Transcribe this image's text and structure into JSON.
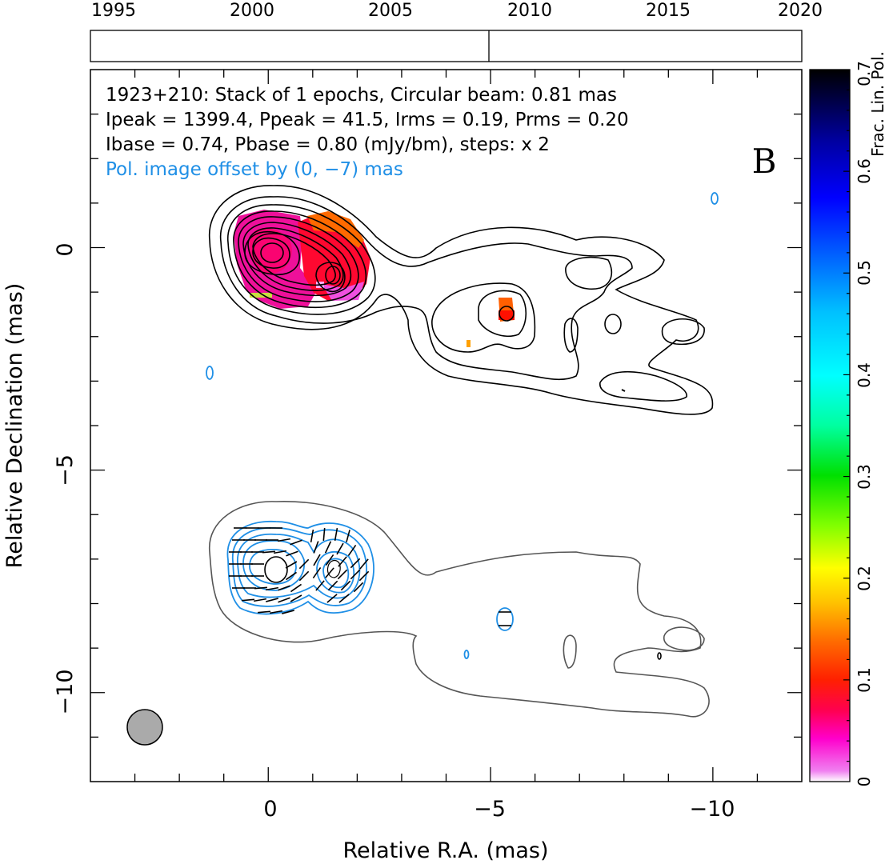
{
  "timeline": {
    "ticks": [
      "1995",
      "2000",
      "2005",
      "2010",
      "2015",
      "2020"
    ],
    "epoch_marker_year": 2008.5
  },
  "annotation": {
    "line1": "1923+210: Stack of 1 epochs, Circular beam: 0.81 mas",
    "line2": "Ipeak = 1399.4, Ppeak = 41.5, Irms = 0.19, Prms = 0.20",
    "line3": "Ibase = 0.74, Pbase = 0.80 (mJy/bm), steps: x 2",
    "line4": "Pol. image offset by (0, −7) mas",
    "panel_letter": "B"
  },
  "axes": {
    "xlabel": "Relative R.A. (mas)",
    "ylabel": "Relative Declination (mas)",
    "colorbar_label": "Frac. Lin. Pol."
  },
  "colors": {
    "stokes_i_contour": "#000000",
    "pol_contour": "#1f8fe6",
    "pol_offset_text": "#1f8fe6",
    "offset_i_contour": "#555555",
    "beam_fill": "#aaaaaa"
  },
  "chart_data": {
    "type": "contour_map",
    "title": "",
    "xlabel": "Relative R.A. (mas)",
    "ylabel": "Relative Declination (mas)",
    "xlim": [
      4,
      -12
    ],
    "ylim": [
      -12,
      4
    ],
    "xticks": [
      0,
      -5,
      -10
    ],
    "xtick_labels": [
      "0",
      "−5",
      "−10"
    ],
    "yticks": [
      0,
      -5,
      -10
    ],
    "ytick_labels": [
      "0",
      "−5",
      "−10"
    ],
    "colorbar": {
      "range": [
        0,
        0.7
      ],
      "ticks": [
        0,
        0.1,
        0.2,
        0.3,
        0.4,
        0.5,
        0.6,
        0.7
      ],
      "tick_labels": [
        "0",
        "0.1",
        "0.2",
        "0.3",
        "0.4",
        "0.5",
        "0.6",
        "0.7"
      ]
    },
    "core_position": [
      0,
      0
    ],
    "secondary_component": [
      -1.5,
      -0.5
    ],
    "knot_position": [
      -5.3,
      -1.5
    ],
    "beam_diameter_mas": 0.81,
    "pol_offset_mas": [
      0,
      -7
    ],
    "ipeak_mJy": 1399.4,
    "ppeak_mJy": 41.5,
    "irms_mJy": 0.19,
    "prms_mJy": 0.2,
    "ibase_mJy": 0.74,
    "pbase_mJy": 0.8,
    "contour_step": 2
  }
}
